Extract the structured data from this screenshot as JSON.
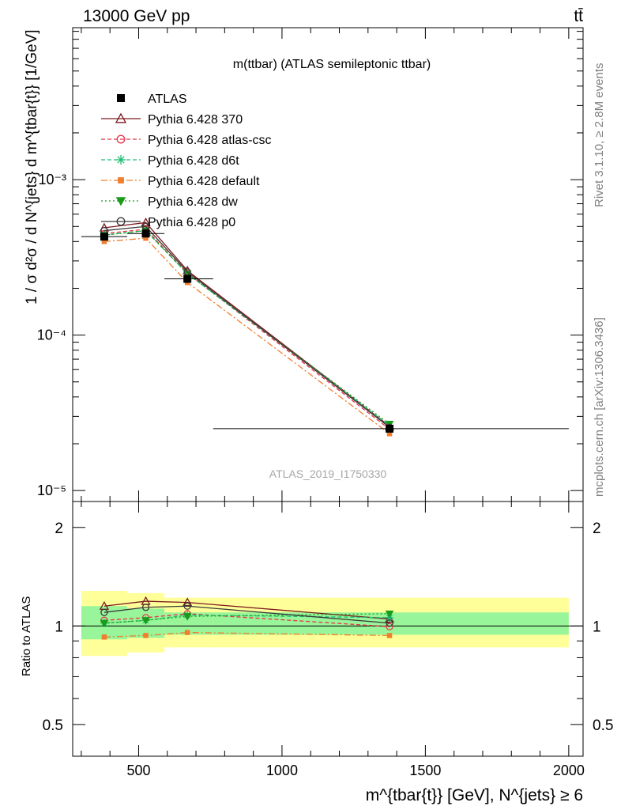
{
  "header": {
    "left": "13000 GeV pp",
    "right": "tt̄"
  },
  "side_labels": {
    "top": "Rivet 3.1.10, ≥ 2.8M events",
    "bottom": "mcplots.cern.ch [arXiv:1306.3436]"
  },
  "watermark": "ATLAS_2019_I1750330",
  "chart_data": [
    {
      "type": "line",
      "title": "m(ttbar) (ATLAS semileptonic ttbar)",
      "xlabel": "m^{tbar{t}} [GeV], N^{jets} ≥ 6",
      "ylabel": "1 / σ d²σ / d N^{jets} d m^{tbar{t}} [1/GeV]",
      "yscale": "log",
      "xlim": [
        270,
        2050
      ],
      "ylim": [
        8.5e-06,
        0.0095
      ],
      "x_ticks": [
        500,
        1000,
        1500,
        2000
      ],
      "y_ticks": [
        1e-05,
        0.0001,
        0.001
      ],
      "y_tick_labels": [
        "10⁻⁵",
        "10⁻⁴",
        "10⁻³"
      ],
      "legend_position": "top-left",
      "x": [
        380,
        525,
        670,
        1375
      ],
      "data": {
        "name": "ATLAS",
        "values": [
          0.00043,
          0.00045,
          0.00023,
          2.5e-05
        ],
        "bins": [
          [
            300,
            460
          ],
          [
            460,
            590
          ],
          [
            590,
            760
          ],
          [
            760,
            2000
          ]
        ]
      },
      "series": [
        {
          "name": "Pythia 6.428 370",
          "values": [
            0.00049,
            0.00053,
            0.00026,
            2.6e-05
          ],
          "color": "#7b1a1f",
          "style": "solid",
          "marker": "triangle-open"
        },
        {
          "name": "Pythia 6.428 atlas-csc",
          "values": [
            0.00045,
            0.00048,
            0.00025,
            2.48e-05
          ],
          "color": "#e8344a",
          "style": "dashed",
          "marker": "circle-open"
        },
        {
          "name": "Pythia 6.428 d6t",
          "values": [
            0.00044,
            0.00047,
            0.000248,
            2.62e-05
          ],
          "color": "#1fbf74",
          "style": "dashed",
          "marker": "star"
        },
        {
          "name": "Pythia 6.428 default",
          "values": [
            0.0004,
            0.00042,
            0.000218,
            2.32e-05
          ],
          "color": "#f07e2f",
          "style": "dashdot",
          "marker": "square"
        },
        {
          "name": "Pythia 6.428 dw",
          "values": [
            0.00044,
            0.00047,
            0.000248,
            2.68e-05
          ],
          "color": "#1a9c1a",
          "style": "dotted",
          "marker": "triangle-down"
        },
        {
          "name": "Pythia 6.428 p0",
          "values": [
            0.00047,
            0.0005,
            0.000255,
            2.55e-05
          ],
          "color": "#3a3a3a",
          "style": "solid",
          "marker": "circle-open"
        }
      ]
    },
    {
      "type": "line",
      "ylabel": "Ratio to ATLAS",
      "yscale": "log",
      "ylim": [
        0.4,
        2.4
      ],
      "y_ticks": [
        0.5,
        1,
        2
      ],
      "y_tick_labels": [
        "0.5",
        "1",
        "2"
      ],
      "bands": [
        {
          "bin": [
            300,
            460
          ],
          "inner": [
            0.91,
            1.15
          ],
          "outer": [
            0.81,
            1.28
          ]
        },
        {
          "bin": [
            460,
            590
          ],
          "inner": [
            0.92,
            1.13
          ],
          "outer": [
            0.83,
            1.26
          ]
        },
        {
          "bin": [
            590,
            760
          ],
          "inner": [
            0.94,
            1.1
          ],
          "outer": [
            0.86,
            1.22
          ]
        },
        {
          "bin": [
            760,
            2000
          ],
          "inner": [
            0.94,
            1.1
          ],
          "outer": [
            0.86,
            1.22
          ]
        }
      ],
      "x": [
        380,
        525,
        670,
        1375
      ],
      "series": [
        {
          "name": "Pythia 6.428 370",
          "values": [
            1.15,
            1.19,
            1.18,
            1.05
          ]
        },
        {
          "name": "Pythia 6.428 atlas-csc",
          "values": [
            1.04,
            1.06,
            1.09,
            0.995
          ]
        },
        {
          "name": "Pythia 6.428 d6t",
          "values": [
            1.02,
            1.04,
            1.08,
            1.06
          ]
        },
        {
          "name": "Pythia 6.428 default",
          "values": [
            0.925,
            0.935,
            0.955,
            0.935
          ]
        },
        {
          "name": "Pythia 6.428 dw",
          "values": [
            1.02,
            1.04,
            1.07,
            1.09
          ]
        },
        {
          "name": "Pythia 6.428 p0",
          "values": [
            1.1,
            1.14,
            1.15,
            1.02
          ]
        }
      ]
    }
  ]
}
